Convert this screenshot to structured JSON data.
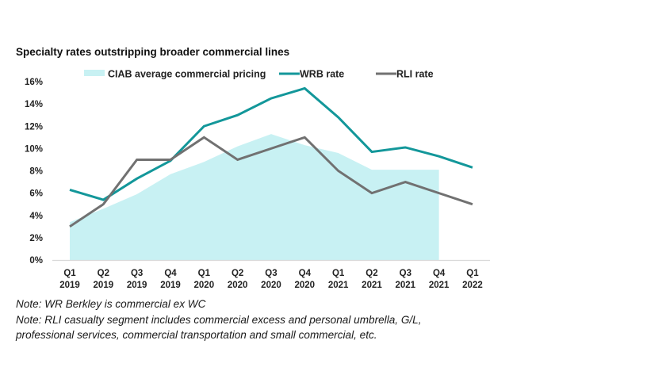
{
  "chart_data": {
    "type": "line",
    "title": "Specialty rates outstripping broader commercial lines",
    "xlabel": "",
    "ylabel": "",
    "ylim": [
      0,
      16
    ],
    "yticks": [
      0,
      2,
      4,
      6,
      8,
      10,
      12,
      14,
      16
    ],
    "ytick_labels": [
      "0%",
      "2%",
      "4%",
      "6%",
      "8%",
      "10%",
      "12%",
      "14%",
      "16%"
    ],
    "grid": false,
    "legend_position": "top",
    "categories": [
      [
        "Q1",
        "2019"
      ],
      [
        "Q2",
        "2019"
      ],
      [
        "Q3",
        "2019"
      ],
      [
        "Q4",
        "2019"
      ],
      [
        "Q1",
        "2020"
      ],
      [
        "Q2",
        "2020"
      ],
      [
        "Q3",
        "2020"
      ],
      [
        "Q4",
        "2020"
      ],
      [
        "Q1",
        "2021"
      ],
      [
        "Q2",
        "2021"
      ],
      [
        "Q3",
        "2021"
      ],
      [
        "Q4",
        "2021"
      ],
      [
        "Q1",
        "2022"
      ]
    ],
    "series": [
      {
        "name": "CIAB average commercial pricing",
        "type": "area",
        "color": "#c8f1f3",
        "values": [
          3.4,
          4.6,
          5.9,
          7.7,
          8.8,
          10.2,
          11.3,
          10.3,
          9.6,
          8.1,
          8.1,
          8.1,
          null
        ]
      },
      {
        "name": "WRB rate",
        "type": "line",
        "color": "#13979a",
        "values": [
          6.3,
          5.4,
          7.3,
          8.9,
          12.0,
          13.0,
          14.5,
          15.4,
          12.8,
          9.7,
          10.1,
          9.3,
          8.3
        ]
      },
      {
        "name": "RLI rate",
        "type": "line",
        "color": "#717171",
        "values": [
          3.0,
          5.0,
          9.0,
          9.0,
          11.0,
          9.0,
          10.0,
          11.0,
          8.0,
          6.0,
          7.0,
          6.0,
          5.0
        ]
      }
    ]
  },
  "notes": [
    "Note: WR Berkley is commercial ex WC",
    "Note: RLI casualty segment includes commercial excess and personal umbrella, G/L,",
    "professional services, commercial transportation and small commercial, etc."
  ]
}
